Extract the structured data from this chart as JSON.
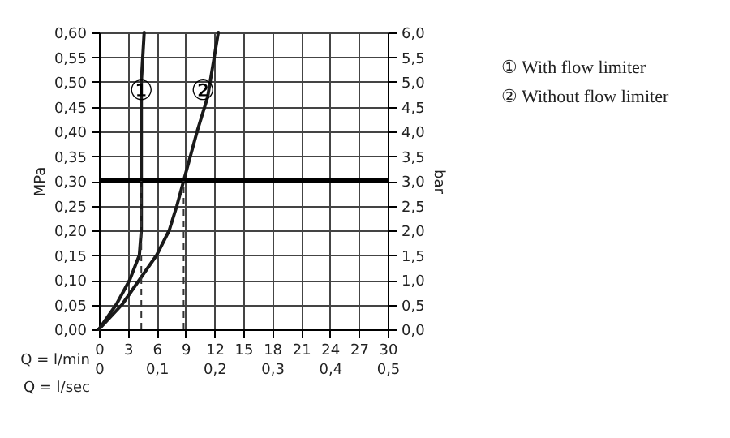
{
  "chart_data": {
    "type": "line",
    "x": [
      0,
      1.8,
      3.2,
      4.2,
      4.4,
      4.4,
      4.4,
      4.7
    ],
    "series": [
      {
        "color": "#1a1a1a",
        "values": [
          0,
          0.05,
          0.1,
          0.15,
          0.2,
          0.3,
          0.5,
          0.6
        ]
      },
      {
        "color": "#1a1a1a",
        "x": [
          0,
          2.4,
          4.2,
          6.0,
          7.3,
          8.1,
          8.8,
          10.2,
          11.3,
          12.4
        ],
        "values": [
          0,
          0.05,
          0.1,
          0.15,
          0.2,
          0.25,
          0.3,
          0.4,
          0.47,
          0.6
        ]
      }
    ],
    "xlabel": "Q = l/min",
    "x2label": "Q = l/sec",
    "ylabel": "MPa",
    "y2label": "bar",
    "xlim": [
      0,
      30
    ],
    "xticks": [
      0,
      3,
      6,
      9,
      12,
      15,
      18,
      21,
      24,
      27,
      30
    ],
    "x2lim": [
      0,
      0.5
    ],
    "x2ticks": [
      0,
      {
        "value": 0.1,
        "label": "0,1"
      },
      {
        "value": 0.2,
        "label": "0,2"
      },
      {
        "value": 0.3,
        "label": "0,3"
      },
      {
        "value": 0.4,
        "label": "0,4"
      },
      {
        "value": 0.5,
        "label": "0,5"
      }
    ],
    "ylim": [
      0,
      0.6
    ],
    "yticks": [
      {
        "value": 0,
        "label": "0,00"
      },
      {
        "value": 0.05,
        "label": "0,05"
      },
      {
        "value": 0.1,
        "label": "0,10"
      },
      {
        "value": 0.15,
        "label": "0,15"
      },
      {
        "value": 0.2,
        "label": "0,20"
      },
      {
        "value": 0.25,
        "label": "0,25"
      },
      {
        "value": 0.3,
        "label": "0,30"
      },
      {
        "value": 0.35,
        "label": "0,35"
      },
      {
        "value": 0.4,
        "label": "0,40"
      },
      {
        "value": 0.45,
        "label": "0,45"
      },
      {
        "value": 0.5,
        "label": "0,50"
      },
      {
        "value": 0.55,
        "label": "0,55"
      },
      {
        "value": 0.6,
        "label": "0,60"
      }
    ],
    "y2lim": [
      0,
      6
    ],
    "y2ticks": [
      {
        "value": 0,
        "label": "0,0"
      },
      {
        "value": 0.5,
        "label": "0,5"
      },
      {
        "value": 1,
        "label": "1,0"
      },
      {
        "value": 1.5,
        "label": "1,5"
      },
      {
        "value": 2,
        "label": "2,0"
      },
      {
        "value": 2.5,
        "label": "2,5"
      },
      {
        "value": 3,
        "label": "3,0"
      },
      {
        "value": 3.5,
        "label": "3,5"
      },
      {
        "value": 4,
        "label": "4,0"
      },
      {
        "value": 4.5,
        "label": "4,5"
      },
      {
        "value": 5,
        "label": "5,0"
      },
      {
        "value": 5.5,
        "label": "5,5"
      },
      {
        "value": 6,
        "label": "6,0"
      }
    ],
    "ref_lines": [
      {
        "axis": "y",
        "value": 0.3,
        "color": "#000000"
      },
      {
        "axis": "x",
        "value": 4.4,
        "line_style": "dashed",
        "color": "#333333"
      },
      {
        "axis": "x",
        "value": 8.8,
        "line_style": "dashed",
        "color": "#333333"
      }
    ],
    "annotations": [
      {
        "text": "①",
        "x": 4.4,
        "y": 0.48
      },
      {
        "text": "②",
        "x": 10.8,
        "y": 0.48
      },
      "① With flow limiter",
      "② Without flow limiter"
    ],
    "grid": true,
    "line_style": "solid",
    "marker": "none"
  }
}
